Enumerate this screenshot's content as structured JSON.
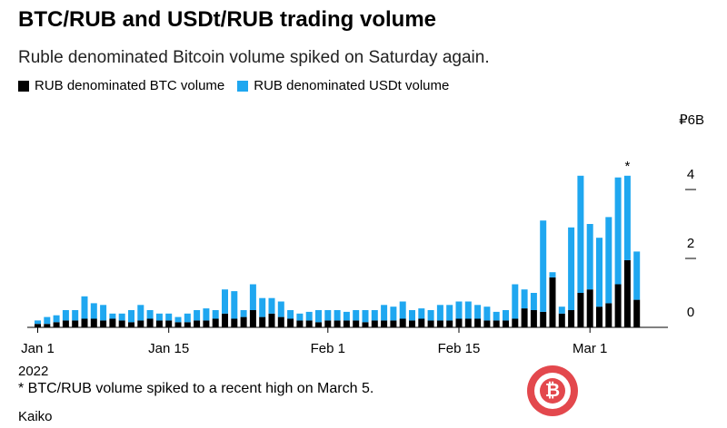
{
  "header": {
    "title": "BTC/RUB and USDt/RUB trading volume",
    "subtitle": "Ruble denominated Bitcoin volume spiked on Saturday again."
  },
  "legend": {
    "btc": {
      "label": "RUB denominated BTC volume",
      "color": "#000000"
    },
    "usdt": {
      "label": "RUB denominated USDt volume",
      "color": "#1fa7f0"
    }
  },
  "footnote": "* BTC/RUB volume spiked to a recent high on March 5.",
  "source": "Kaiko",
  "watermark": {
    "icon": "bitcoin-logo-icon",
    "letter": "₿"
  },
  "chart_data": {
    "type": "bar",
    "stacked": true,
    "x_start": "2022-01-01",
    "x_end": "2022-03-07",
    "y_unit_label": "₽6B",
    "ylim": [
      0,
      6
    ],
    "yticks": [
      0,
      2,
      4
    ],
    "xticks": [
      {
        "label": "Jan 1",
        "index": 0
      },
      {
        "label": "Jan 15",
        "index": 14
      },
      {
        "label": "Feb 1",
        "index": 31
      },
      {
        "label": "Feb 15",
        "index": 45
      },
      {
        "label": "Mar 1",
        "index": 59
      }
    ],
    "year_label": "2022",
    "annotation": {
      "text": "*",
      "index": 63
    },
    "series": [
      {
        "name": "RUB denominated BTC volume",
        "color": "#000000",
        "values": [
          0.1,
          0.1,
          0.15,
          0.2,
          0.2,
          0.25,
          0.25,
          0.2,
          0.25,
          0.2,
          0.15,
          0.2,
          0.25,
          0.2,
          0.2,
          0.15,
          0.15,
          0.2,
          0.2,
          0.25,
          0.4,
          0.25,
          0.3,
          0.5,
          0.3,
          0.4,
          0.3,
          0.25,
          0.2,
          0.2,
          0.15,
          0.2,
          0.2,
          0.2,
          0.2,
          0.15,
          0.2,
          0.2,
          0.2,
          0.25,
          0.2,
          0.25,
          0.2,
          0.2,
          0.2,
          0.25,
          0.25,
          0.25,
          0.2,
          0.2,
          0.2,
          0.25,
          0.55,
          0.5,
          0.45,
          1.45,
          0.4,
          0.5,
          1.0,
          1.1,
          0.6,
          0.7,
          1.25,
          1.95,
          0.8
        ]
      },
      {
        "name": "RUB denominated USDt volume",
        "color": "#1fa7f0",
        "values": [
          0.1,
          0.2,
          0.2,
          0.3,
          0.3,
          0.65,
          0.45,
          0.45,
          0.15,
          0.2,
          0.35,
          0.45,
          0.25,
          0.2,
          0.2,
          0.15,
          0.25,
          0.3,
          0.35,
          0.25,
          0.7,
          0.8,
          0.2,
          0.75,
          0.55,
          0.45,
          0.45,
          0.25,
          0.2,
          0.25,
          0.35,
          0.3,
          0.3,
          0.25,
          0.3,
          0.35,
          0.3,
          0.45,
          0.4,
          0.5,
          0.3,
          0.3,
          0.3,
          0.45,
          0.45,
          0.5,
          0.5,
          0.4,
          0.4,
          0.25,
          0.3,
          1.0,
          0.55,
          0.5,
          2.65,
          0.15,
          0.2,
          2.4,
          3.4,
          1.9,
          2.0,
          2.5,
          3.1,
          2.45,
          1.4
        ]
      }
    ]
  }
}
